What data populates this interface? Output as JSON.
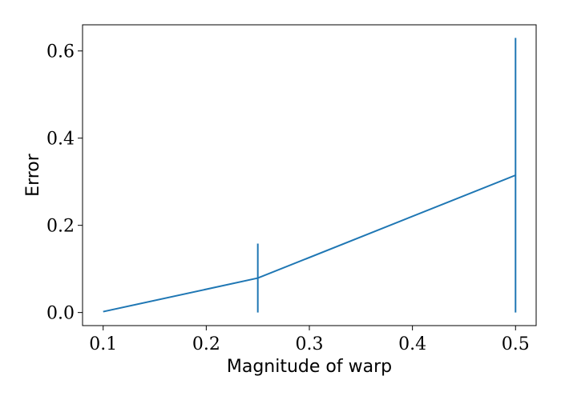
{
  "chart_data": {
    "type": "line",
    "title": "",
    "xlabel": "Magnitude of warp",
    "ylabel": "Error",
    "xlim": [
      0.08,
      0.52
    ],
    "ylim": [
      -0.03,
      0.66
    ],
    "x_ticks": [
      0.1,
      0.2,
      0.3,
      0.4,
      0.5
    ],
    "x_tick_labels": [
      "0.1",
      "0.2",
      "0.3",
      "0.4",
      "0.5"
    ],
    "y_ticks": [
      0.0,
      0.2,
      0.4,
      0.6
    ],
    "y_tick_labels": [
      "0.0",
      "0.2",
      "0.4",
      "0.6"
    ],
    "grid": false,
    "series": [
      {
        "color": "#1f77b4",
        "x": [
          0.1,
          0.25,
          0.5
        ],
        "y": [
          0.002,
          0.079,
          0.315
        ],
        "yerr": [
          0.0,
          0.079,
          0.315
        ]
      }
    ]
  }
}
